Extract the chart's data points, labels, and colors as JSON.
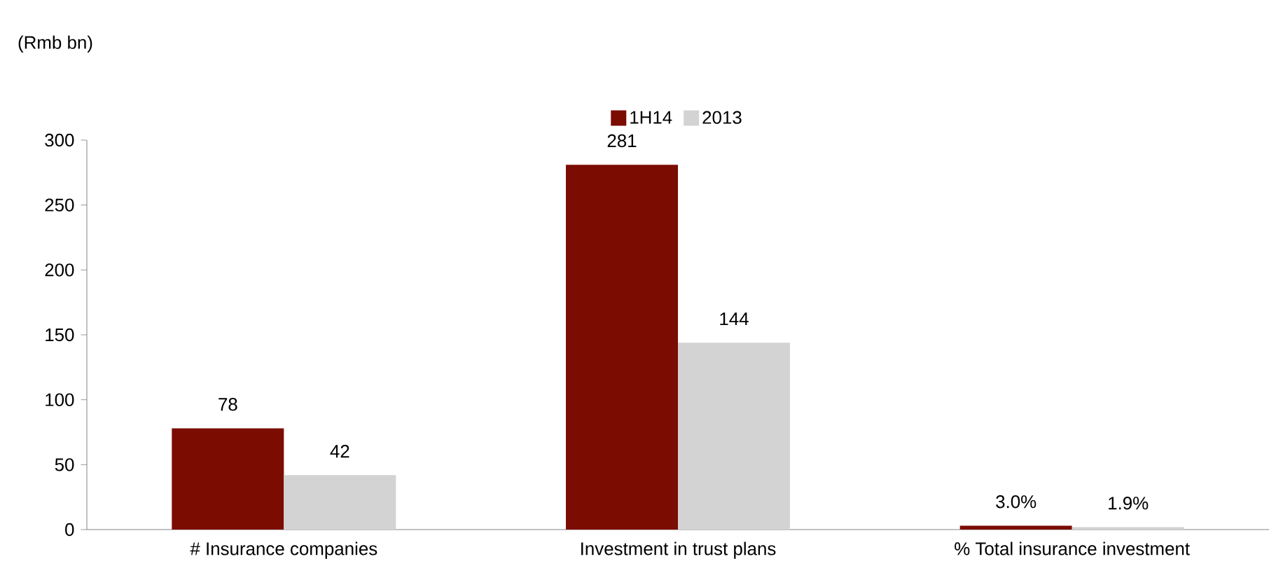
{
  "chart_data": {
    "type": "bar",
    "ylabel": "(Rmb bn)",
    "categories": [
      "# Insurance companies",
      "Investment in trust plans",
      "% Total insurance investment"
    ],
    "series": [
      {
        "name": "1H14",
        "color": "#7b0c02",
        "values": [
          78,
          281,
          3.0
        ],
        "value_labels": [
          "78",
          "281",
          "3.0%"
        ]
      },
      {
        "name": "2013",
        "color": "#d3d3d3",
        "values": [
          42,
          144,
          1.9
        ],
        "value_labels": [
          "42",
          "144",
          "1.9%"
        ]
      }
    ],
    "ylim": [
      0,
      300
    ],
    "yticks": [
      0,
      50,
      100,
      150,
      200,
      250,
      300
    ],
    "grid": false,
    "legend": "top"
  }
}
